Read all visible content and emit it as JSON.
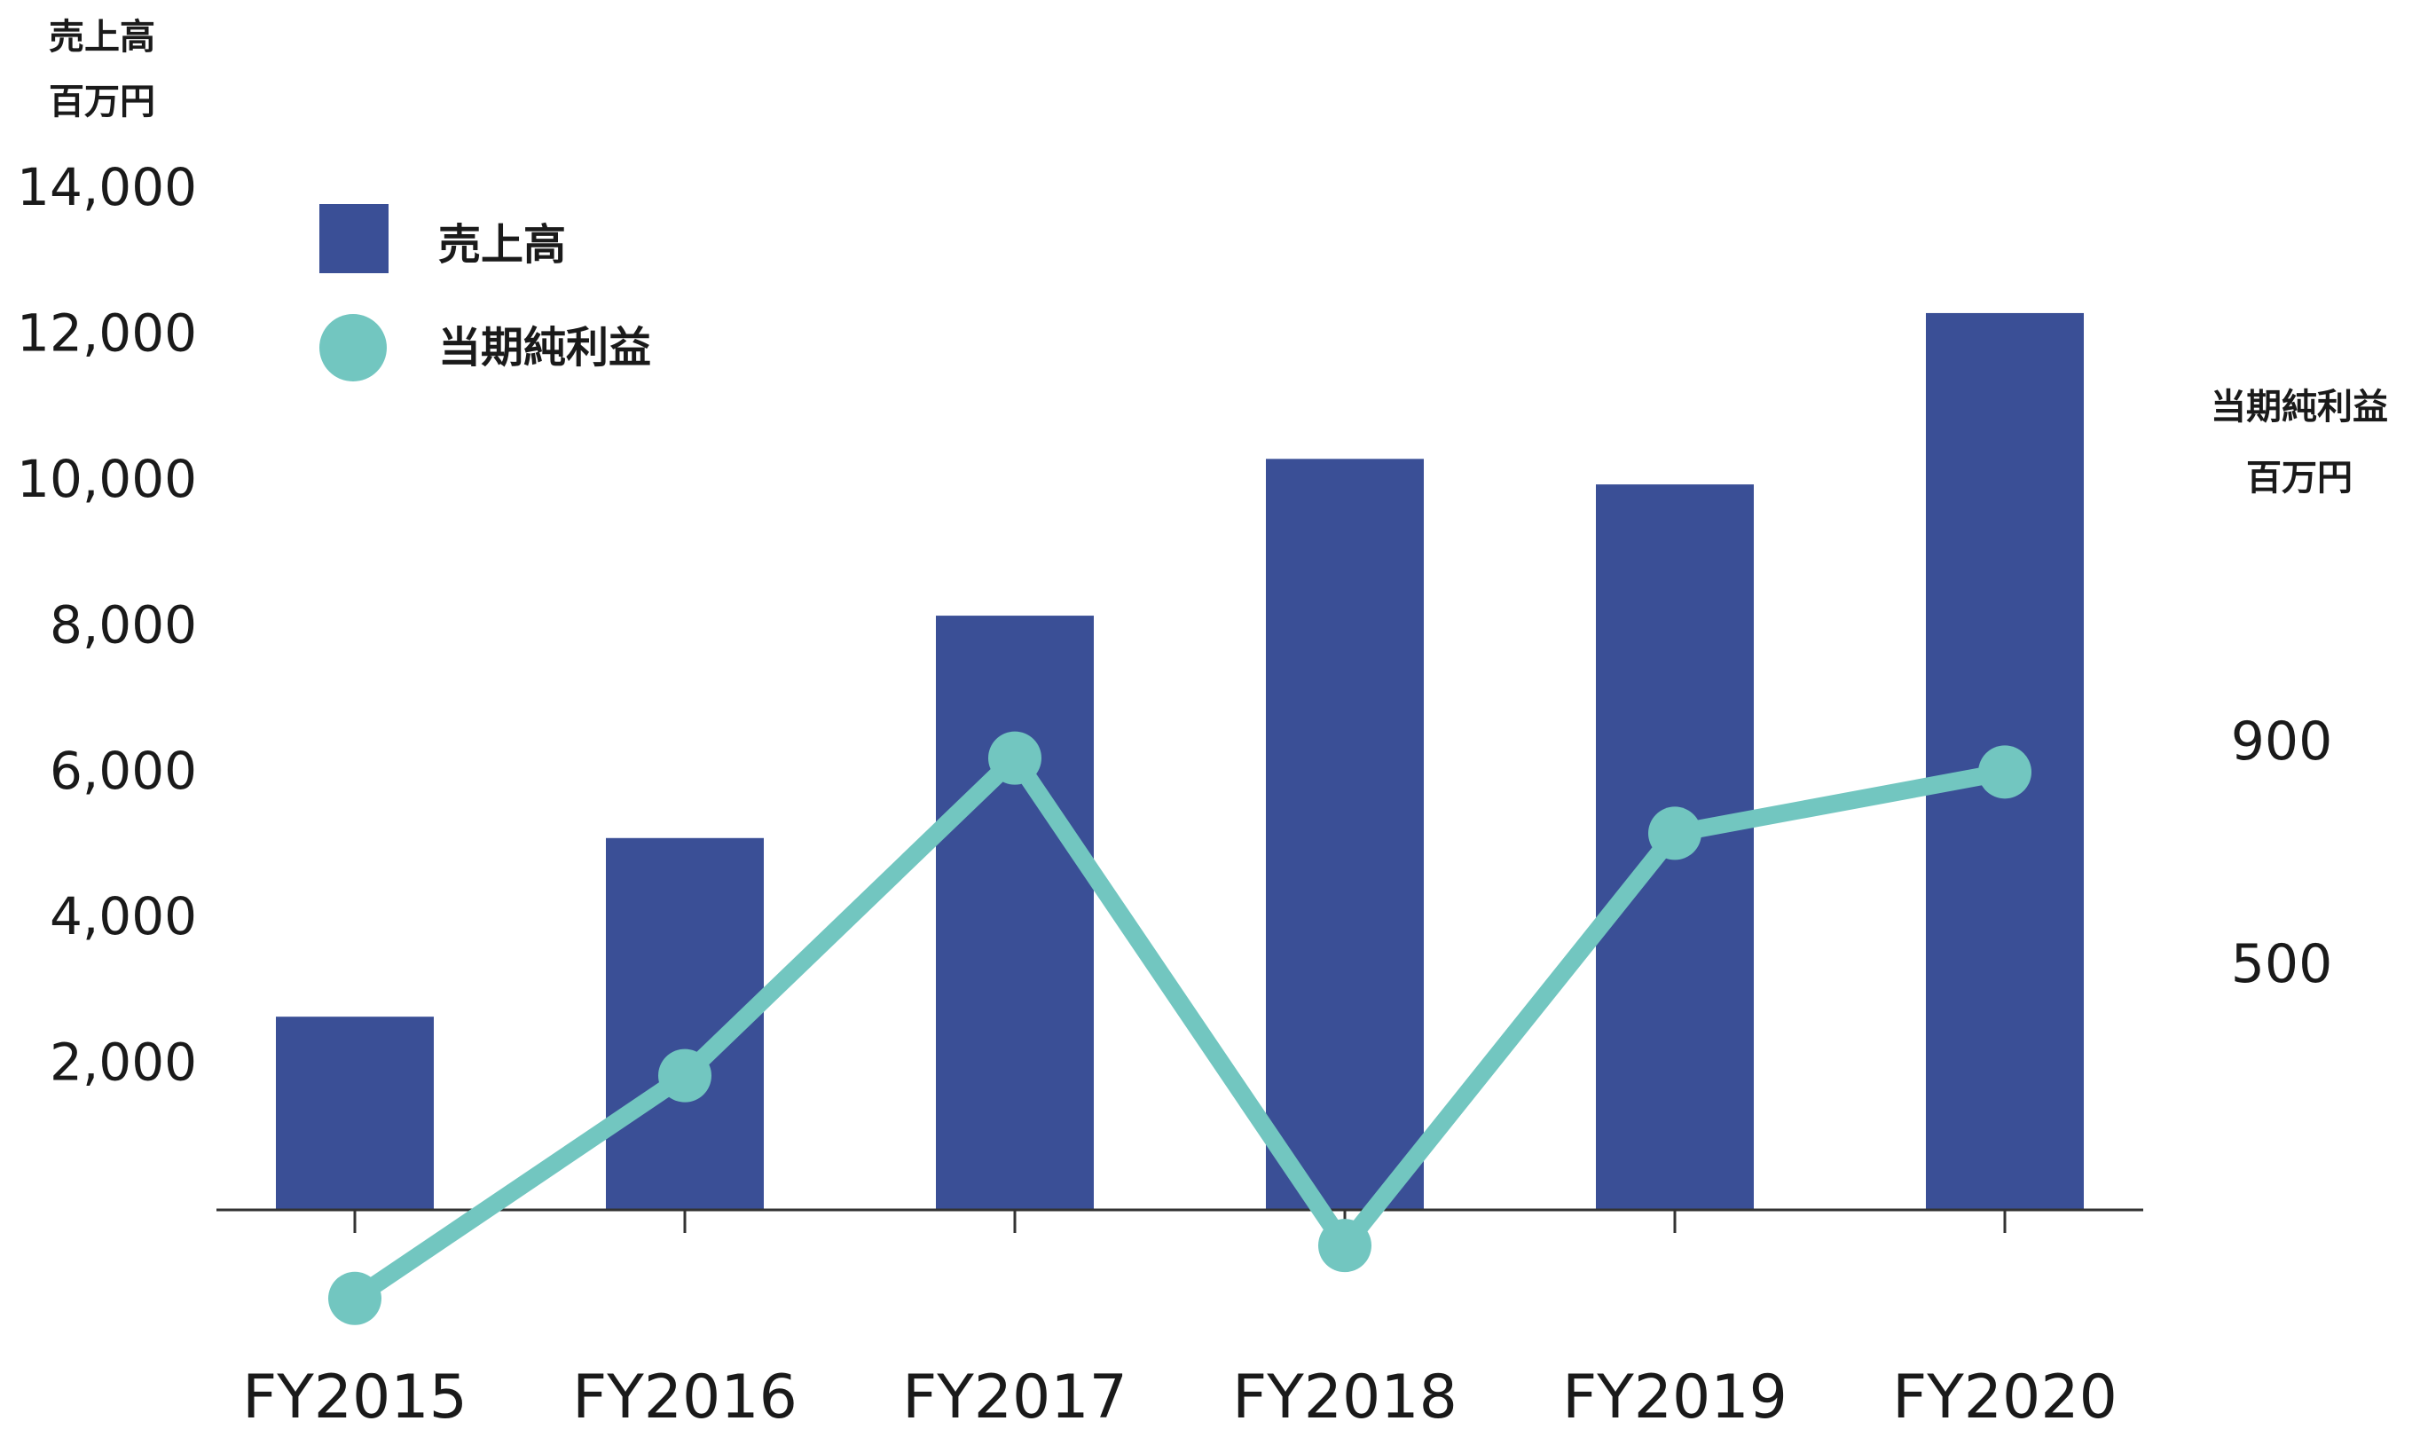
{
  "chart_data": {
    "type": "bar+line",
    "categories": [
      "FY2015",
      "FY2016",
      "FY2017",
      "FY2018",
      "FY2019",
      "FY2020"
    ],
    "series": [
      {
        "name": "売上高",
        "type": "bar",
        "axis": "left",
        "color": "#3a4f96",
        "values": [
          2650,
          5100,
          8150,
          10300,
          9950,
          12300
        ]
      },
      {
        "name": "当期純利益",
        "type": "line",
        "axis": "right",
        "color": "#72c6c0",
        "values": [
          -100,
          300,
          870,
          -5,
          735,
          845
        ]
      }
    ],
    "left_axis": {
      "unit_lines": [
        "売上高",
        "百万円"
      ],
      "ylim": [
        0,
        14000
      ],
      "ticks": [
        {
          "value": 2000,
          "label": "2,000"
        },
        {
          "value": 4000,
          "label": "4,000"
        },
        {
          "value": 6000,
          "label": "6,000"
        },
        {
          "value": 8000,
          "label": "8,000"
        },
        {
          "value": 10000,
          "label": "10,000"
        },
        {
          "value": 12000,
          "label": "12,000"
        },
        {
          "value": 14000,
          "label": "14,000"
        }
      ]
    },
    "right_axis": {
      "unit_lines": [
        "当期純利益",
        "百万円"
      ],
      "ticks": [
        {
          "value": 500,
          "label": "500"
        },
        {
          "value": 900,
          "label": "900"
        }
      ]
    },
    "legend": {
      "placement": "top-left",
      "items": [
        {
          "label": "売上高",
          "marker": "square"
        },
        {
          "label": "当期純利益",
          "marker": "circle"
        }
      ]
    },
    "grid": false
  }
}
